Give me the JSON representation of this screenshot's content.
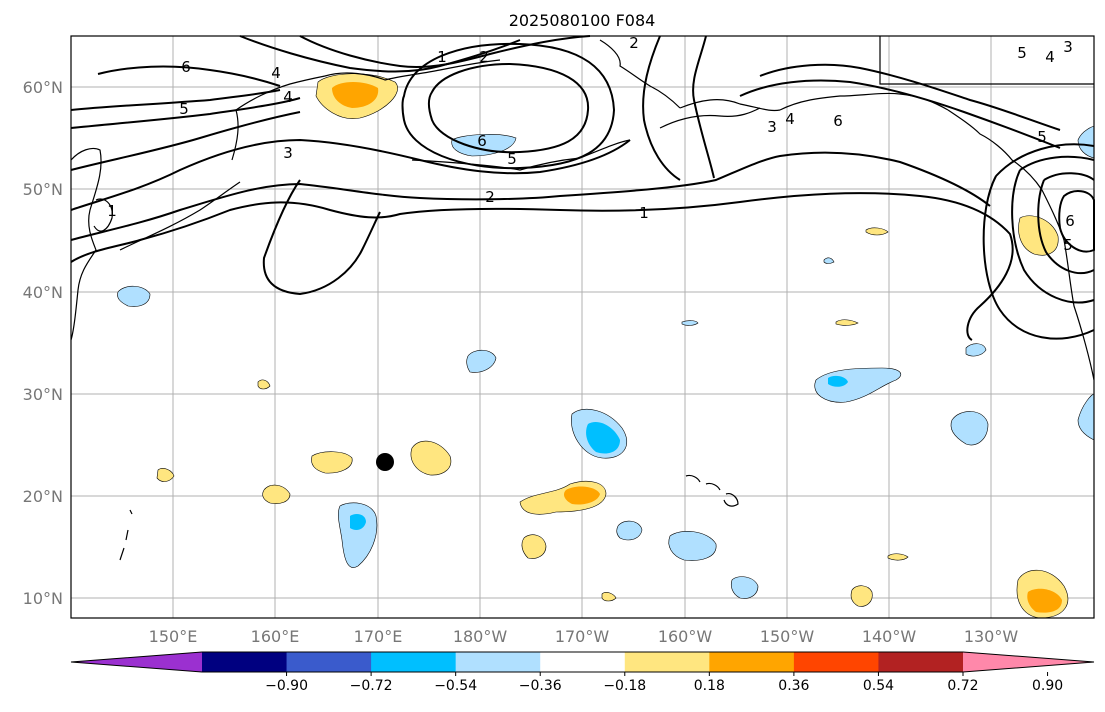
{
  "title": "2025080100 F084",
  "lat_labels": [
    "60°N",
    "50°N",
    "40°N",
    "30°N",
    "20°N",
    "10°N"
  ],
  "lon_labels": [
    "150°E",
    "160°E",
    "170°E",
    "180°W",
    "170°W",
    "160°W",
    "150°W",
    "140°W",
    "130°W"
  ],
  "colorbar": {
    "levels": [
      "−0.90",
      "−0.72",
      "−0.54",
      "−0.36",
      "−0.18",
      "0.18",
      "0.36",
      "0.54",
      "0.72",
      "0.90"
    ],
    "colors": [
      "#9b30d0",
      "#000080",
      "#3a5bcc",
      "#00bfff",
      "#b0e0ff",
      "#ffffff",
      "#ffe680",
      "#ffa500",
      "#ff4500",
      "#b22222",
      "#ff88aa"
    ]
  },
  "contour_labels": [
    "1",
    "2",
    "3",
    "4",
    "5",
    "6"
  ],
  "shading_colors": {
    "light_yellow": "#ffe680",
    "orange": "#ffa500",
    "light_blue": "#b0e0ff",
    "blue": "#00bfff"
  },
  "marker": {
    "lat": 23.3,
    "lon": 169.5,
    "color": "#000000"
  }
}
